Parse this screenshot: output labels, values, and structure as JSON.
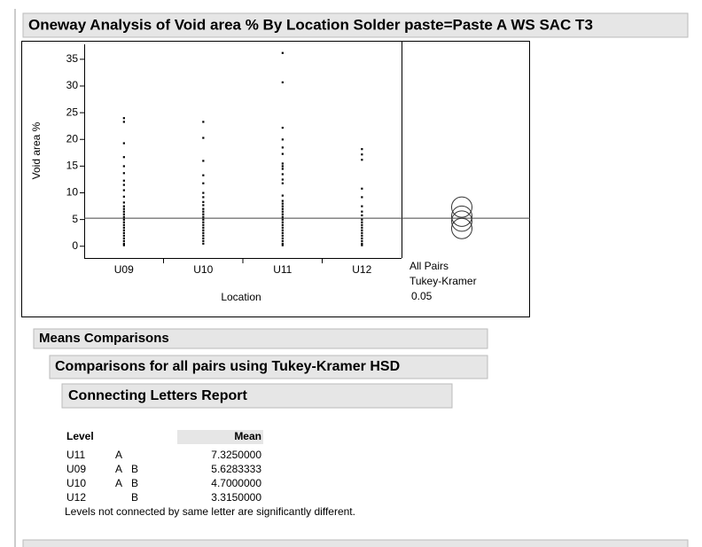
{
  "header": {
    "title": "Oneway Analysis of Void area % By Location Solder paste=Paste A WS SAC T3"
  },
  "chart_data": {
    "type": "strip",
    "ylabel": "Void area %",
    "xlabel": "Location",
    "categories": [
      "U09",
      "U10",
      "U11",
      "U12"
    ],
    "values": [
      [
        24,
        23.3,
        19.3,
        16.7,
        15,
        13.7,
        12.3,
        11.5,
        10.5,
        9.3,
        8.2,
        7.5,
        7,
        6.5,
        6,
        5.5,
        5,
        4.5,
        4,
        3.5,
        3,
        2.5,
        2,
        1.5,
        1,
        0.5,
        0.2
      ],
      [
        23.3,
        20.3,
        16,
        13.3,
        11.8,
        10,
        9.2,
        8.3,
        7.7,
        7,
        6.5,
        6,
        5.5,
        5,
        4.5,
        4,
        3.5,
        3,
        2.5,
        2,
        1.5,
        1,
        0.5
      ],
      [
        36.2,
        30.7,
        22.2,
        20,
        18.5,
        17.3,
        15.5,
        15,
        14.5,
        13.5,
        12.5,
        11.8,
        9.5,
        8.5,
        8,
        7.5,
        7,
        6.5,
        6,
        5.5,
        5,
        4.5,
        4,
        3.5,
        3,
        2.5,
        2,
        1.5,
        1,
        0.5,
        0.2
      ],
      [
        18.2,
        17.2,
        16.2,
        10.8,
        9.2,
        7.5,
        6.5,
        5.8,
        5,
        4.5,
        4,
        3.5,
        3,
        2.5,
        2,
        1.5,
        1,
        0.5,
        0.2
      ]
    ],
    "color": "#000000",
    "grand_mean": 5.25,
    "ylim": [
      -2.2,
      37.8
    ],
    "yticks": [
      0,
      5,
      10,
      15,
      20,
      25,
      30,
      35
    ],
    "comparison_labels": [
      "All Pairs",
      "Tukey-Kramer",
      "0.05"
    ]
  },
  "sections": [
    "Means Comparisons",
    "Comparisons for all pairs using Tukey-Kramer HSD",
    "Connecting Letters Report"
  ],
  "table": {
    "columns": [
      "Level",
      "Mean"
    ],
    "rows": [
      {
        "level": "U11",
        "letters": [
          "A"
        ],
        "mean": "7.3250000"
      },
      {
        "level": "U09",
        "letters": [
          "A",
          "B"
        ],
        "mean": "5.6283333"
      },
      {
        "level": "U10",
        "letters": [
          "A",
          "B"
        ],
        "mean": "4.7000000"
      },
      {
        "level": "U12",
        "letters": [
          "B"
        ],
        "mean": "3.3150000"
      }
    ],
    "note": "Levels not connected by same letter are significantly different."
  }
}
